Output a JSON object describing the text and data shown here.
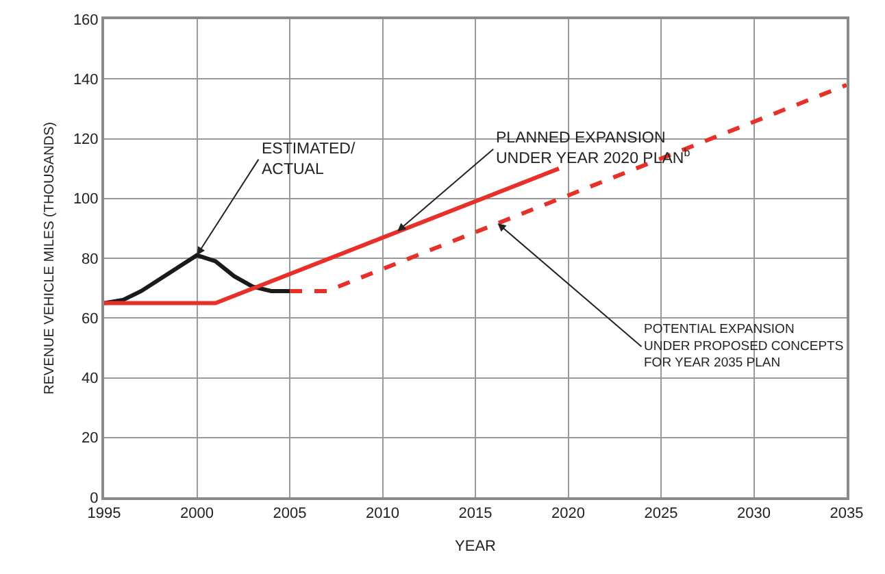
{
  "chart_data": {
    "type": "line",
    "xlabel": "YEAR",
    "ylabel": "REVENUE VEHICLE MILES (THOUSANDS)",
    "xlim": [
      1995,
      2035
    ],
    "xticks": [
      1995,
      2000,
      2005,
      2010,
      2015,
      2020,
      2025,
      2030,
      2035
    ],
    "ylim": [
      0,
      160
    ],
    "yticks": [
      0,
      20,
      40,
      60,
      80,
      100,
      120,
      140,
      160
    ],
    "grid": true,
    "marker": "none",
    "series": [
      {
        "color": "#1a1a1a",
        "line_style": "solid",
        "x": [
          1995,
          1996,
          1997,
          1998,
          1999,
          2000,
          2001,
          2002,
          2003,
          2004,
          2005
        ],
        "values": [
          65,
          66,
          69,
          73,
          77,
          81,
          79,
          74,
          70.5,
          69,
          69
        ]
      },
      {
        "color": "#e8302a",
        "line_style": "solid",
        "x": [
          1995,
          2001,
          2019.5
        ],
        "values": [
          65,
          65,
          110
        ]
      },
      {
        "color": "#e8302a",
        "line_style": "dashed",
        "x": [
          2005,
          2007,
          2035
        ],
        "values": [
          69,
          69,
          138
        ]
      }
    ],
    "annotations": [
      {
        "text": "ESTIMATED/\nACTUAL",
        "x": 2000,
        "y": 81
      },
      {
        "text": "PLANNED EXPANSION\nUNDER YEAR 2020 PLAN$^{b}$",
        "x": 2010.8,
        "y": 89
      },
      {
        "text": "POTENTIAL EXPANSION\nUNDER PROPOSED CONCEPTS\nFOR YEAR 2035 PLAN",
        "x": 2016.2,
        "y": 91.7
      }
    ]
  }
}
